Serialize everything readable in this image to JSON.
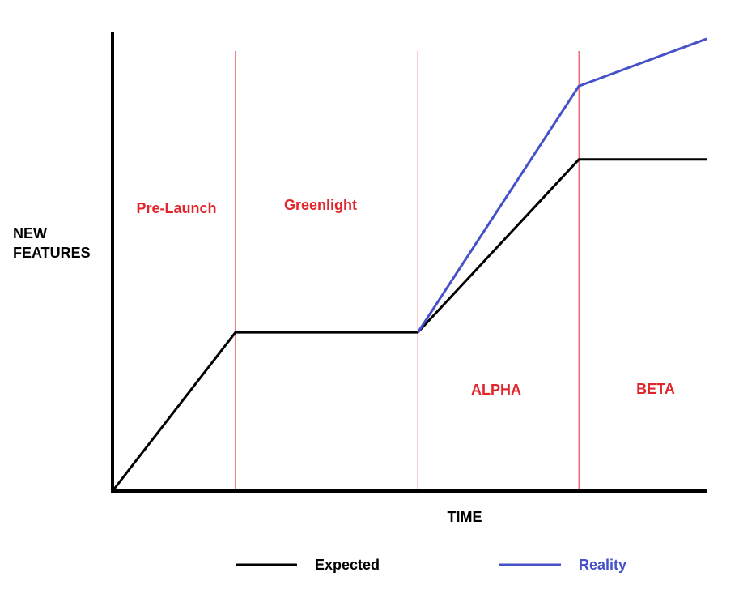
{
  "chart_data": {
    "type": "line",
    "x_label": "TIME",
    "y_label": "NEW FEATURES",
    "xlim": [
      0,
      100
    ],
    "ylim": [
      0,
      100
    ],
    "x": [
      0,
      20.7,
      51.4,
      78.5,
      100
    ],
    "series": [
      {
        "name": "Expected",
        "color": "#000000",
        "values": [
          0,
          34.6,
          34.6,
          72.3,
          72.3
        ]
      },
      {
        "name": "Reality",
        "color": "#4650c8",
        "values": [
          null,
          null,
          34.6,
          88.3,
          98.6
        ]
      }
    ],
    "phase_lines": {
      "color": "#e0262c",
      "x": [
        20.7,
        51.4,
        78.5
      ]
    },
    "annotations": [
      "Pre-Launch",
      "Greenlight",
      "ALPHA",
      "BETA"
    ],
    "annotation_color": "#e0262c"
  }
}
